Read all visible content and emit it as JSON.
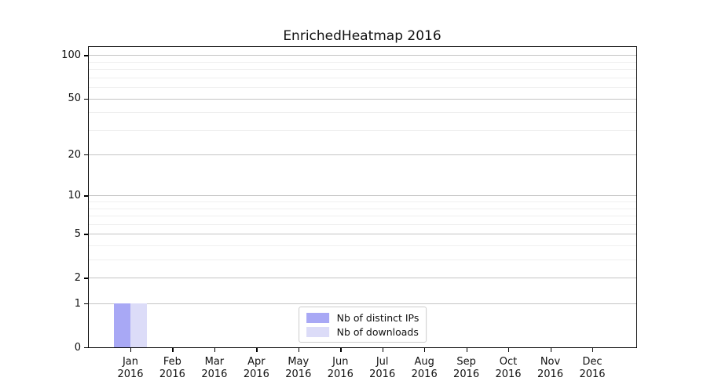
{
  "chart_data": {
    "type": "bar",
    "title": "EnrichedHeatmap 2016",
    "categories": [
      "Jan",
      "Feb",
      "Mar",
      "Apr",
      "May",
      "Jun",
      "Jul",
      "Aug",
      "Sep",
      "Oct",
      "Nov",
      "Dec"
    ],
    "category_year": "2016",
    "series": [
      {
        "name": "Nb of distinct IPs",
        "color": "#a8a8f5",
        "values": [
          1,
          0,
          0,
          0,
          0,
          0,
          0,
          0,
          0,
          0,
          0,
          0
        ]
      },
      {
        "name": "Nb of downloads",
        "color": "#dcdcf8",
        "values": [
          1,
          0,
          0,
          0,
          0,
          0,
          0,
          0,
          0,
          0,
          0,
          0
        ]
      }
    ],
    "y_scale": "log1p",
    "y_axis": {
      "major_ticks": [
        0,
        1,
        2,
        5,
        10,
        20,
        50,
        100
      ],
      "minor_gridlines": [
        3,
        4,
        6,
        7,
        8,
        9,
        30,
        40,
        60,
        70,
        80,
        90
      ],
      "ylim": [
        0,
        114
      ]
    },
    "grid": true,
    "legend_position": "lower center",
    "colors": {
      "background": "#ffffff",
      "major_grid": "#c4c4c4",
      "minor_grid": "#efefef",
      "axis": "#000000",
      "text": "#111111"
    }
  }
}
